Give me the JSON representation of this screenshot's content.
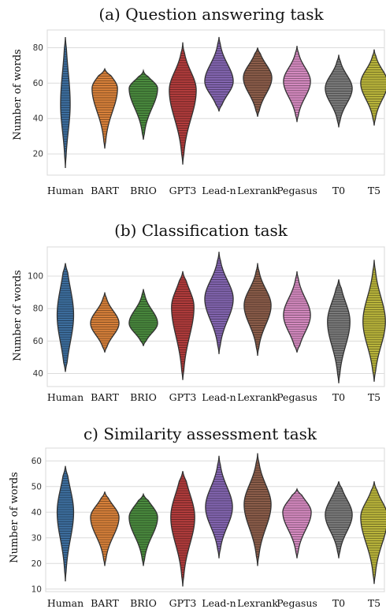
{
  "chart_data": [
    {
      "type": "violin",
      "title": "(a) Question answering task",
      "ylabel": "Number of words",
      "categories": [
        "Human",
        "BART",
        "BRIO",
        "GPT3",
        "Lead-n",
        "Lexrank",
        "Pegasus",
        "T0",
        "T5"
      ],
      "colors": [
        "#3d6e9e",
        "#d7803a",
        "#4a8a3e",
        "#b13c3c",
        "#8365b0",
        "#8b5d4a",
        "#d58ac0",
        "#7a7a7a",
        "#b9b43b"
      ],
      "yticks": [
        20,
        40,
        60,
        80
      ],
      "ylim": [
        8,
        90
      ],
      "grid": true,
      "distributions": [
        {
          "min": 12,
          "max": 86,
          "median": 48,
          "q1": 38,
          "q3": 60,
          "mode": 48,
          "width": 0.32
        },
        {
          "min": 23,
          "max": 68,
          "median": 57,
          "q1": 52,
          "q3": 61,
          "mode": 57,
          "width": 0.85
        },
        {
          "min": 28,
          "max": 67,
          "median": 57,
          "q1": 53,
          "q3": 60,
          "mode": 57,
          "width": 0.95
        },
        {
          "min": 14,
          "max": 83,
          "median": 56,
          "q1": 49,
          "q3": 62,
          "mode": 56,
          "width": 0.9
        },
        {
          "min": 44,
          "max": 86,
          "median": 62,
          "q1": 57,
          "q3": 67,
          "mode": 61,
          "width": 0.95
        },
        {
          "min": 41,
          "max": 80,
          "median": 63,
          "q1": 57,
          "q3": 68,
          "mode": 63,
          "width": 0.95
        },
        {
          "min": 38,
          "max": 81,
          "median": 61,
          "q1": 55,
          "q3": 66,
          "mode": 61,
          "width": 0.9
        },
        {
          "min": 35,
          "max": 76,
          "median": 56,
          "q1": 51,
          "q3": 61,
          "mode": 57,
          "width": 0.9
        },
        {
          "min": 36,
          "max": 79,
          "median": 60,
          "q1": 55,
          "q3": 65,
          "mode": 60,
          "width": 0.9
        }
      ]
    },
    {
      "type": "violin",
      "title": "(b) Classification task",
      "ylabel": "Number of words",
      "categories": [
        "Human",
        "BART",
        "BRIO",
        "GPT3",
        "Lead-n",
        "Lexrank",
        "Pegasus",
        "T0",
        "T5"
      ],
      "colors": [
        "#3d6e9e",
        "#d7803a",
        "#4a8a3e",
        "#b13c3c",
        "#8365b0",
        "#8b5d4a",
        "#d58ac0",
        "#7a7a7a",
        "#b9b43b"
      ],
      "yticks": [
        40,
        60,
        80,
        100
      ],
      "ylim": [
        32,
        118
      ],
      "grid": true,
      "distributions": [
        {
          "min": 41,
          "max": 108,
          "median": 75,
          "q1": 64,
          "q3": 86,
          "mode": 76,
          "width": 0.55
        },
        {
          "min": 53,
          "max": 90,
          "median": 71,
          "q1": 66,
          "q3": 76,
          "mode": 71,
          "width": 0.95
        },
        {
          "min": 57,
          "max": 92,
          "median": 71,
          "q1": 67,
          "q3": 75,
          "mode": 71,
          "width": 0.95
        },
        {
          "min": 36,
          "max": 103,
          "median": 78,
          "q1": 66,
          "q3": 85,
          "mode": 81,
          "width": 0.75
        },
        {
          "min": 52,
          "max": 115,
          "median": 86,
          "q1": 78,
          "q3": 93,
          "mode": 86,
          "width": 0.95
        },
        {
          "min": 51,
          "max": 108,
          "median": 83,
          "q1": 76,
          "q3": 89,
          "mode": 82,
          "width": 0.9
        },
        {
          "min": 53,
          "max": 103,
          "median": 78,
          "q1": 71,
          "q3": 85,
          "mode": 76,
          "width": 0.9
        },
        {
          "min": 34,
          "max": 98,
          "median": 70,
          "q1": 60,
          "q3": 78,
          "mode": 72,
          "width": 0.75
        },
        {
          "min": 35,
          "max": 110,
          "median": 70,
          "q1": 60,
          "q3": 80,
          "mode": 72,
          "width": 0.75
        }
      ]
    },
    {
      "type": "violin",
      "title": "c) Similarity assessment task",
      "ylabel": "Number of words",
      "categories": [
        "Human",
        "BART",
        "BRIO",
        "GPT3",
        "Lead-n",
        "Lexrank",
        "Pegasus",
        "T0",
        "T5"
      ],
      "colors": [
        "#3d6e9e",
        "#d7803a",
        "#4a8a3e",
        "#b13c3c",
        "#8365b0",
        "#8b5d4a",
        "#d58ac0",
        "#7a7a7a",
        "#b9b43b"
      ],
      "yticks": [
        10,
        20,
        30,
        40,
        50,
        60
      ],
      "ylim": [
        9,
        65
      ],
      "grid": true,
      "distributions": [
        {
          "min": 13,
          "max": 58,
          "median": 38,
          "q1": 31,
          "q3": 44,
          "mode": 40,
          "width": 0.55
        },
        {
          "min": 19,
          "max": 48,
          "median": 38,
          "q1": 35,
          "q3": 41,
          "mode": 38,
          "width": 0.95
        },
        {
          "min": 19,
          "max": 47,
          "median": 38,
          "q1": 35,
          "q3": 41,
          "mode": 38,
          "width": 0.95
        },
        {
          "min": 11,
          "max": 56,
          "median": 36,
          "q1": 30,
          "q3": 42,
          "mode": 38,
          "width": 0.8
        },
        {
          "min": 22,
          "max": 62,
          "median": 42,
          "q1": 37,
          "q3": 47,
          "mode": 42,
          "width": 0.9
        },
        {
          "min": 19,
          "max": 63,
          "median": 42,
          "q1": 36,
          "q3": 47,
          "mode": 43,
          "width": 0.9
        },
        {
          "min": 22,
          "max": 49,
          "median": 40,
          "q1": 37,
          "q3": 43,
          "mode": 40,
          "width": 0.95
        },
        {
          "min": 22,
          "max": 52,
          "median": 39,
          "q1": 35,
          "q3": 43,
          "mode": 39,
          "width": 0.9
        },
        {
          "min": 12,
          "max": 52,
          "median": 38,
          "q1": 33,
          "q3": 42,
          "mode": 38,
          "width": 0.9
        }
      ]
    }
  ]
}
